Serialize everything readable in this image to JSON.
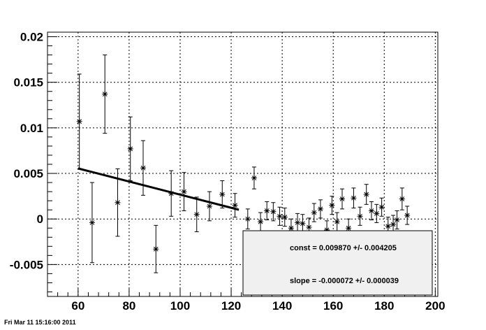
{
  "timestamp": "Fri Mar 11 15:16:00 2011",
  "stats": {
    "const_line": "const = 0.009870 +/- 0.004205",
    "slope_line": "slope = -0.000072 +/- 0.000039"
  },
  "chart_data": {
    "type": "scatter",
    "grid": true,
    "xlim": [
      48,
      201
    ],
    "ylim": [
      -0.0085,
      0.0205
    ],
    "x_ticks": [
      60,
      80,
      100,
      120,
      140,
      160,
      180,
      200
    ],
    "x_tick_labels": [
      "60",
      "80",
      "100",
      "120",
      "140",
      "160",
      "180",
      "200"
    ],
    "y_ticks": [
      -0.005,
      0,
      0.005,
      0.01,
      0.015,
      0.02
    ],
    "y_tick_labels": [
      "-0.005",
      "0",
      "0.005",
      "0.01",
      "0.015",
      "0.02"
    ],
    "points": [
      {
        "x": 60.5,
        "y": 0.0107,
        "err": 0.0052
      },
      {
        "x": 65.5,
        "y": -0.0004,
        "err": 0.0044
      },
      {
        "x": 70.5,
        "y": 0.0137,
        "err": 0.0043
      },
      {
        "x": 75.5,
        "y": 0.0018,
        "err": 0.0037
      },
      {
        "x": 80.5,
        "y": 0.0077,
        "err": 0.0035
      },
      {
        "x": 85.5,
        "y": 0.0056,
        "err": 0.003
      },
      {
        "x": 90.5,
        "y": -0.0033,
        "err": 0.0026
      },
      {
        "x": 96.5,
        "y": 0.0028,
        "err": 0.0025
      },
      {
        "x": 101.5,
        "y": 0.003,
        "err": 0.0021
      },
      {
        "x": 106.5,
        "y": 0.0005,
        "err": 0.0019
      },
      {
        "x": 111.5,
        "y": 0.0014,
        "err": 0.0016
      },
      {
        "x": 116.5,
        "y": 0.0027,
        "err": 0.0015
      },
      {
        "x": 121.5,
        "y": 0.0015,
        "err": 0.0013
      },
      {
        "x": 126.5,
        "y": 0.0,
        "err": 0.0011
      },
      {
        "x": 129.0,
        "y": 0.0045,
        "err": 0.0012
      },
      {
        "x": 131.5,
        "y": -0.0003,
        "err": 0.001
      },
      {
        "x": 134.0,
        "y": 0.0009,
        "err": 0.001
      },
      {
        "x": 136.5,
        "y": 0.0008,
        "err": 0.001
      },
      {
        "x": 139.0,
        "y": 0.0003,
        "err": 0.001
      },
      {
        "x": 141.0,
        "y": 0.0002,
        "err": 0.001
      },
      {
        "x": 143.5,
        "y": -0.001,
        "err": 0.001
      },
      {
        "x": 146.0,
        "y": -0.0004,
        "err": 0.001
      },
      {
        "x": 148.0,
        "y": -0.0005,
        "err": 0.001
      },
      {
        "x": 150.5,
        "y": -0.0009,
        "err": 0.001
      },
      {
        "x": 152.5,
        "y": 0.0007,
        "err": 0.001
      },
      {
        "x": 155.0,
        "y": 0.0011,
        "err": 0.001
      },
      {
        "x": 157.5,
        "y": -0.0012,
        "err": 0.001
      },
      {
        "x": 159.5,
        "y": 0.0015,
        "err": 0.001
      },
      {
        "x": 161.5,
        "y": -0.0003,
        "err": 0.001
      },
      {
        "x": 163.5,
        "y": 0.0022,
        "err": 0.0011
      },
      {
        "x": 166.0,
        "y": -0.001,
        "err": 0.001
      },
      {
        "x": 168.0,
        "y": 0.0023,
        "err": 0.0011
      },
      {
        "x": 170.5,
        "y": 0.0003,
        "err": 0.001
      },
      {
        "x": 173.0,
        "y": 0.0027,
        "err": 0.0011
      },
      {
        "x": 175.0,
        "y": 0.0009,
        "err": 0.001
      },
      {
        "x": 177.0,
        "y": 0.0006,
        "err": 0.001
      },
      {
        "x": 179.0,
        "y": 0.0013,
        "err": 0.001
      },
      {
        "x": 181.5,
        "y": -0.0008,
        "err": 0.001
      },
      {
        "x": 183.5,
        "y": -0.0006,
        "err": 0.001
      },
      {
        "x": 185.0,
        "y": -0.0001,
        "err": 0.001
      },
      {
        "x": 187.0,
        "y": 0.0022,
        "err": 0.0012
      },
      {
        "x": 189.0,
        "y": 0.0004,
        "err": 0.001
      }
    ],
    "fit": {
      "x_start": 60,
      "x_end": 123,
      "intercept": 0.00987,
      "slope": -7.2e-05
    }
  }
}
